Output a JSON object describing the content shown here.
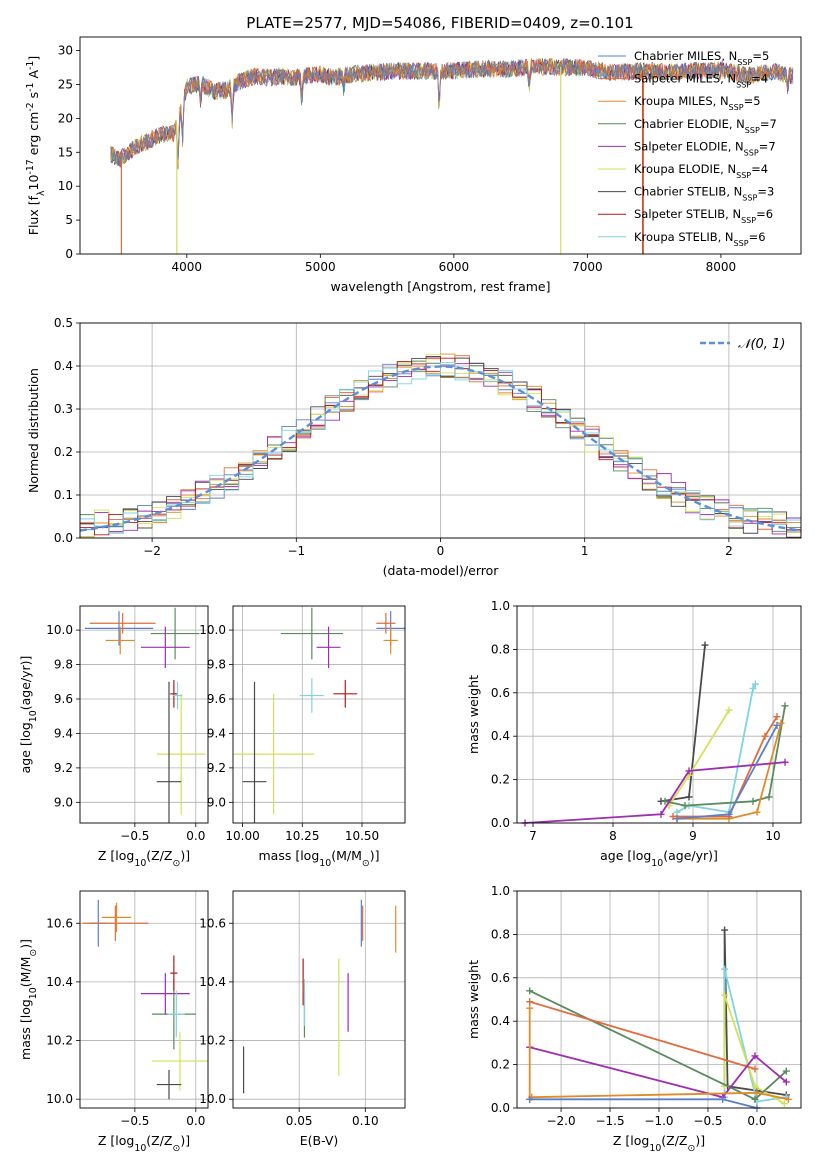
{
  "figure_title": "PLATE=2577, MJD=54086, FIBERID=0409, z=0.101",
  "series_names": [
    "Chabrier MILES, N$_{SSP}$=5",
    "Salpeter MILES, N$_{SSP}$=4",
    "Kroupa MILES, N$_{SSP}$=5",
    "Chabrier ELODIE, N$_{SSP}$=7",
    "Salpeter ELODIE, N$_{SSP}$=7",
    "Kroupa ELODIE, N$_{SSP}$=4",
    "Chabrier STELIB, N$_{SSP}$=3",
    "Salpeter STELIB, N$_{SSP}$=6",
    "Kroupa STELIB, N$_{SSP}$=6"
  ],
  "series_colors": [
    "#5b7fcc",
    "#e06b3d",
    "#e08b2a",
    "#5a8a5e",
    "#9e2eb0",
    "#d5e05a",
    "#4a4a4a",
    "#b01c1c",
    "#7fd4e0"
  ],
  "chart_data": [
    {
      "id": "spectrum",
      "type": "line",
      "title": "PLATE=2577, MJD=54086, FIBERID=0409, z=0.101",
      "xlabel": "wavelength [Angstrom, rest frame]",
      "ylabel": "Flux [f$_λ$10$^{-17}$ erg cm$^{-2}$ s$^{-1}$ A$^{-1}$]",
      "xlim": [
        3200,
        8600
      ],
      "ylim": [
        0,
        32
      ],
      "xticks": [
        4000,
        5000,
        6000,
        7000,
        8000
      ],
      "yticks": [
        0,
        5,
        10,
        15,
        20,
        25,
        30
      ],
      "grid": false,
      "legend": "right",
      "legend_entries": [
        {
          "name": "Chabrier MILES, N",
          "sub": "SSP",
          "suffix": "=5",
          "color": "#5b7fcc"
        },
        {
          "name": "Salpeter MILES, N",
          "sub": "SSP",
          "suffix": "=4",
          "color": "#e06b3d"
        },
        {
          "name": "Kroupa MILES, N",
          "sub": "SSP",
          "suffix": "=5",
          "color": "#e08b2a"
        },
        {
          "name": "Chabrier ELODIE, N",
          "sub": "SSP",
          "suffix": "=7",
          "color": "#5a8a5e"
        },
        {
          "name": "Salpeter ELODIE, N",
          "sub": "SSP",
          "suffix": "=7",
          "color": "#9e2eb0"
        },
        {
          "name": "Kroupa ELODIE, N",
          "sub": "SSP",
          "suffix": "=4",
          "color": "#d5e05a"
        },
        {
          "name": "Chabrier STELIB, N",
          "sub": "SSP",
          "suffix": "=3",
          "color": "#4a4a4a"
        },
        {
          "name": "Salpeter STELIB, N",
          "sub": "SSP",
          "suffix": "=6",
          "color": "#b01c1c"
        },
        {
          "name": "Kroupa STELIB, N",
          "sub": "SSP",
          "suffix": "=6",
          "color": "#7fd4e0"
        }
      ],
      "continuum": [
        [
          3420,
          14.8
        ],
        [
          3500,
          14.0
        ],
        [
          3600,
          15.6
        ],
        [
          3700,
          16.5
        ],
        [
          3800,
          17.6
        ],
        [
          3900,
          17.8
        ],
        [
          3950,
          20.5
        ],
        [
          4000,
          24.6
        ],
        [
          4100,
          25.2
        ],
        [
          4200,
          24.0
        ],
        [
          4300,
          24.2
        ],
        [
          4400,
          25.5
        ],
        [
          4500,
          26.2
        ],
        [
          4600,
          26.0
        ],
        [
          4700,
          26.2
        ],
        [
          4800,
          26.0
        ],
        [
          4900,
          26.3
        ],
        [
          5000,
          26.5
        ],
        [
          5100,
          26.0
        ],
        [
          5200,
          26.4
        ],
        [
          5400,
          26.8
        ],
        [
          5600,
          27.0
        ],
        [
          5800,
          27.0
        ],
        [
          6000,
          27.0
        ],
        [
          6200,
          27.3
        ],
        [
          6400,
          27.3
        ],
        [
          6600,
          27.6
        ],
        [
          6800,
          27.6
        ],
        [
          7000,
          27.4
        ],
        [
          7200,
          26.7
        ],
        [
          7400,
          27.0
        ],
        [
          7600,
          26.8
        ],
        [
          7800,
          27.0
        ],
        [
          8000,
          27.1
        ],
        [
          8200,
          26.3
        ],
        [
          8400,
          27.0
        ],
        [
          8500,
          26.3
        ]
      ]
    },
    {
      "id": "residuals",
      "type": "bar",
      "title": "",
      "xlabel": "(data-model)/error",
      "ylabel": "Normed distribution",
      "xlim": [
        -2.5,
        2.5
      ],
      "ylim": [
        0,
        0.5
      ],
      "xticks": [
        -2,
        -1,
        0,
        1,
        2
      ],
      "yticks": [
        0.0,
        0.1,
        0.2,
        0.3,
        0.4,
        0.5
      ],
      "grid": true,
      "legend": "top-right",
      "reference_curve": "𝒩(0, 1)",
      "reference_color": "#5b8fd6",
      "bin_width": 0.1
    },
    {
      "id": "age_vs_Z",
      "type": "scatter",
      "xlabel": "Z [log$_{10}$(Z/Z$_⊙$)]",
      "ylabel": "age  [log$_{10}$(age/yr)]",
      "xlim": [
        -0.95,
        0.1
      ],
      "ylim": [
        8.88,
        10.14
      ],
      "xticks": [
        -0.5,
        0.0
      ],
      "yticks": [
        9.0,
        9.2,
        9.4,
        9.6,
        9.8,
        10.0
      ],
      "grid": true,
      "points": [
        {
          "x": -0.63,
          "y": 10.01,
          "xerr": 0.28,
          "yerr": 0.1
        },
        {
          "x": -0.6,
          "y": 10.04,
          "xerr": 0.27,
          "yerr": 0.06
        },
        {
          "x": -0.62,
          "y": 9.94,
          "xerr": 0.12,
          "yerr": 0.08
        },
        {
          "x": -0.17,
          "y": 9.98,
          "xerr": 0.2,
          "yerr": 0.15
        },
        {
          "x": -0.25,
          "y": 9.9,
          "xerr": 0.2,
          "yerr": 0.12
        },
        {
          "x": -0.12,
          "y": 9.28,
          "xerr": 0.2,
          "yerr": 0.35
        },
        {
          "x": -0.22,
          "y": 9.12,
          "xerr": 0.1,
          "yerr": 0.58
        },
        {
          "x": -0.18,
          "y": 9.63,
          "xerr": 0.03,
          "yerr": 0.08
        },
        {
          "x": -0.15,
          "y": 9.62,
          "xerr": 0.04,
          "yerr": 0.08
        }
      ]
    },
    {
      "id": "age_vs_mass",
      "type": "scatter",
      "xlabel": "mass [log$_{10}$(M/M$_⊙$)]",
      "ylabel": "",
      "xlim": [
        9.96,
        10.68
      ],
      "ylim": [
        8.88,
        10.14
      ],
      "xticks": [
        10.0,
        10.25,
        10.5
      ],
      "yticks": [
        9.0,
        9.2,
        9.4,
        9.6,
        9.8,
        10.0
      ],
      "grid": true,
      "points": [
        {
          "x": 10.62,
          "y": 10.01,
          "xerr": 0.06,
          "yerr": 0.1
        },
        {
          "x": 10.6,
          "y": 10.04,
          "xerr": 0.04,
          "yerr": 0.06
        },
        {
          "x": 10.62,
          "y": 9.94,
          "xerr": 0.03,
          "yerr": 0.08
        },
        {
          "x": 10.29,
          "y": 9.98,
          "xerr": 0.13,
          "yerr": 0.15
        },
        {
          "x": 10.36,
          "y": 9.9,
          "xerr": 0.05,
          "yerr": 0.12
        },
        {
          "x": 10.13,
          "y": 9.28,
          "xerr": 0.17,
          "yerr": 0.35
        },
        {
          "x": 10.05,
          "y": 9.12,
          "xerr": 0.05,
          "yerr": 0.58
        },
        {
          "x": 10.43,
          "y": 9.63,
          "xerr": 0.05,
          "yerr": 0.08
        },
        {
          "x": 10.29,
          "y": 9.62,
          "xerr": 0.05,
          "yerr": 0.1
        }
      ]
    },
    {
      "id": "mass_weight_vs_age",
      "type": "line",
      "xlabel": "age  [log$_{10}$(age/yr)]",
      "ylabel": "mass weight",
      "xlim": [
        6.8,
        10.35
      ],
      "ylim": [
        0,
        1
      ],
      "xticks": [
        7,
        8,
        9,
        10
      ],
      "yticks": [
        0.0,
        0.2,
        0.4,
        0.6,
        0.8,
        1.0
      ],
      "grid": true,
      "series": [
        {
          "name": "Chabrier STELIB",
          "x": [
            8.6,
            8.95,
            9.15
          ],
          "y": [
            0.1,
            0.12,
            0.82
          ]
        },
        {
          "name": "Kroupa ELODIE",
          "x": [
            8.7,
            8.95,
            9.45
          ],
          "y": [
            0.08,
            0.22,
            0.52
          ]
        },
        {
          "name": "Kroupa STELIB",
          "x": [
            8.8,
            8.95,
            9.45,
            9.75,
            9.78
          ],
          "y": [
            0.05,
            0.08,
            0.05,
            0.62,
            0.64
          ]
        },
        {
          "name": "Salpeter MILES",
          "x": [
            8.75,
            9.45,
            9.9,
            10.05
          ],
          "y": [
            0.03,
            0.03,
            0.4,
            0.49
          ]
        },
        {
          "name": "Chabrier ELODIE",
          "x": [
            8.65,
            8.9,
            9.75,
            9.95,
            10.15
          ],
          "y": [
            0.1,
            0.08,
            0.1,
            0.12,
            0.54
          ]
        },
        {
          "name": "Kroupa MILES",
          "x": [
            8.8,
            9.45,
            9.8,
            10.1
          ],
          "y": [
            0.02,
            0.02,
            0.05,
            0.46
          ]
        },
        {
          "name": "Salpeter ELODIE",
          "x": [
            6.9,
            8.6,
            8.95,
            10.15
          ],
          "y": [
            0.0,
            0.04,
            0.24,
            0.28
          ]
        },
        {
          "name": "Chabrier MILES",
          "x": [
            8.8,
            9.45,
            10.05
          ],
          "y": [
            0.02,
            0.04,
            0.45
          ]
        }
      ]
    },
    {
      "id": "mass_vs_Z",
      "type": "scatter",
      "xlabel": "Z [log$_{10}$(Z/Z$_⊙$)]",
      "ylabel": "mass [log$_{10}$(M/M$_⊙$)]",
      "xlim": [
        -0.95,
        0.1
      ],
      "ylim": [
        9.97,
        10.71
      ],
      "xticks": [
        -0.5,
        0.0
      ],
      "yticks": [
        10.0,
        10.2,
        10.4,
        10.6
      ],
      "grid": true,
      "points": [
        {
          "x": -0.8,
          "y": 10.6,
          "xerr": 0.07,
          "yerr": 0.08
        },
        {
          "x": -0.66,
          "y": 10.6,
          "xerr": 0.27,
          "yerr": 0.06
        },
        {
          "x": -0.65,
          "y": 10.62,
          "xerr": 0.12,
          "yerr": 0.05
        },
        {
          "x": -0.18,
          "y": 10.29,
          "xerr": 0.18,
          "yerr": 0.12
        },
        {
          "x": -0.25,
          "y": 10.36,
          "xerr": 0.2,
          "yerr": 0.07
        },
        {
          "x": -0.13,
          "y": 10.13,
          "xerr": 0.23,
          "yerr": 0.1
        },
        {
          "x": -0.22,
          "y": 10.05,
          "xerr": 0.1,
          "yerr": 0.05
        },
        {
          "x": -0.18,
          "y": 10.43,
          "xerr": 0.03,
          "yerr": 0.06
        },
        {
          "x": -0.16,
          "y": 10.29,
          "xerr": 0.07,
          "yerr": 0.08
        }
      ]
    },
    {
      "id": "mass_vs_EBV",
      "type": "scatter",
      "xlabel": "E(B-V)",
      "ylabel": "",
      "xlim": [
        0.0,
        0.13
      ],
      "ylim": [
        9.97,
        10.71
      ],
      "xticks": [
        0.05,
        0.1
      ],
      "yticks": [
        10.0,
        10.2,
        10.4,
        10.6
      ],
      "grid": true,
      "points": [
        {
          "x": 0.097,
          "y": 10.6,
          "yerr": 0.08
        },
        {
          "x": 0.098,
          "y": 10.6,
          "yerr": 0.06
        },
        {
          "x": 0.123,
          "y": 10.58,
          "yerr": 0.08
        },
        {
          "x": 0.054,
          "y": 10.29,
          "yerr": 0.08
        },
        {
          "x": 0.087,
          "y": 10.33,
          "yerr": 0.1
        },
        {
          "x": 0.08,
          "y": 10.28,
          "yerr": 0.2
        },
        {
          "x": 0.008,
          "y": 10.1,
          "yerr": 0.08
        },
        {
          "x": 0.053,
          "y": 10.4,
          "yerr": 0.08
        },
        {
          "x": 0.054,
          "y": 10.33,
          "yerr": 0.08
        }
      ]
    },
    {
      "id": "mass_weight_vs_Z",
      "type": "line",
      "xlabel": "Z [log$_{10}$(Z/Z$_⊙$)]",
      "ylabel": "mass weight",
      "xlim": [
        -2.45,
        0.45
      ],
      "ylim": [
        0,
        1
      ],
      "xticks": [
        -2.0,
        -1.5,
        -1.0,
        -0.5,
        0.0
      ],
      "yticks": [
        0.0,
        0.2,
        0.4,
        0.6,
        0.8,
        1.0
      ],
      "grid": true,
      "series": [
        {
          "name": "Chabrier STELIB",
          "x": [
            -0.33,
            -0.33,
            -0.3,
            0.0,
            0.3
          ],
          "y": [
            0.1,
            0.82,
            0.1,
            0.08,
            0.06
          ]
        },
        {
          "name": "Kroupa STELIB",
          "x": [
            -0.33,
            -0.33,
            0.0,
            0.3
          ],
          "y": [
            0.05,
            0.64,
            0.03,
            0.05
          ]
        },
        {
          "name": "Kroupa ELODIE",
          "x": [
            -0.33,
            -0.33,
            -0.02,
            0.28
          ],
          "y": [
            0.1,
            0.52,
            0.1,
            0.02
          ]
        },
        {
          "name": "Chabrier ELODIE",
          "x": [
            -2.32,
            -0.02,
            0.3
          ],
          "y": [
            0.54,
            0.04,
            0.17
          ]
        },
        {
          "name": "Salpeter MILES",
          "x": [
            -2.32,
            -0.02
          ],
          "y": [
            0.49,
            0.18
          ]
        },
        {
          "name": "Salpeter ELODIE",
          "x": [
            -2.32,
            -0.35,
            -0.02,
            0.3
          ],
          "y": [
            0.28,
            0.05,
            0.24,
            0.12
          ]
        },
        {
          "name": "Kroupa MILES",
          "x": [
            -2.32,
            -2.32,
            -2.3,
            0.0,
            0.32
          ],
          "y": [
            0.46,
            0.04,
            0.05,
            0.07,
            0.04
          ]
        },
        {
          "name": "Chabrier MILES",
          "x": [
            -2.32,
            -0.35,
            0.0
          ],
          "y": [
            0.04,
            0.04,
            0.0
          ]
        }
      ]
    }
  ]
}
